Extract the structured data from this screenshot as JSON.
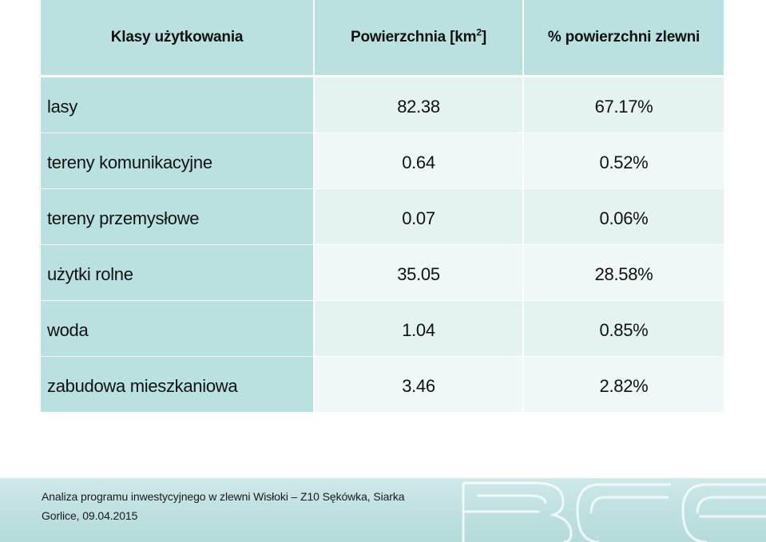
{
  "table": {
    "headers": {
      "class": "Klasy użytkowania",
      "area_main": "Powierzchnia [km",
      "area_sup": "2",
      "area_end": "]",
      "percent": "% powierzchni zlewni"
    },
    "rows": [
      {
        "label": "lasy",
        "area": "82.38",
        "percent": "67.17%"
      },
      {
        "label": "tereny komunikacyjne",
        "area": "0.64",
        "percent": "0.52%"
      },
      {
        "label": "tereny przemysłowe",
        "area": "0.07",
        "percent": "0.06%"
      },
      {
        "label": "użytki rolne",
        "area": "35.05",
        "percent": "28.58%"
      },
      {
        "label": "woda",
        "area": "1.04",
        "percent": "0.85%"
      },
      {
        "label": "zabudowa mieszkaniowa",
        "area": "3.46",
        "percent": "2.82%"
      }
    ]
  },
  "footer": {
    "line1": "Analiza programu inwestycyjnego w zlewni Wisłoki – Z10 Sękówka, Siarka",
    "line2": "Gorlice, 09.04.2015",
    "logo_text": "BCE"
  },
  "colors": {
    "cell_dark": "#b9e1df",
    "cell_light": "#e4f2f1",
    "cell_lighter": "#f0f7f7",
    "footer_band": "#bfe1df"
  }
}
